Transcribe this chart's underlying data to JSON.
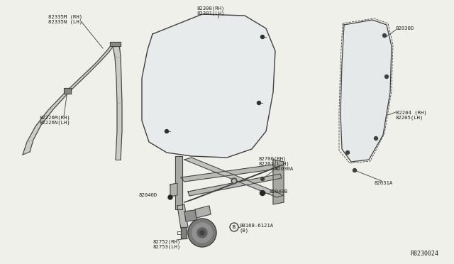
{
  "bg_color": "#f0f0eb",
  "labels": {
    "82335M": "82335M (RH)\n82335N (LH)",
    "82226M": "82226M(RH)\n82226N(LH)",
    "82300": "82300(RH)\n82301(LH)",
    "82700": "82700(RH)\n82701(L.H)",
    "82030A": "82030A",
    "82040B": "82040B",
    "82040D": "82040D",
    "08168": "08168-6121A\n(B)",
    "82752": "82752(RH)\n82753(LH)",
    "82030D": "82030D",
    "82204": "82204 (RH)\n82205(LH)",
    "82031A": "82031A",
    "ref": "R8230024"
  },
  "lc": "#404040",
  "tc": "#202020",
  "fs": 5.2,
  "lw": 0.7
}
